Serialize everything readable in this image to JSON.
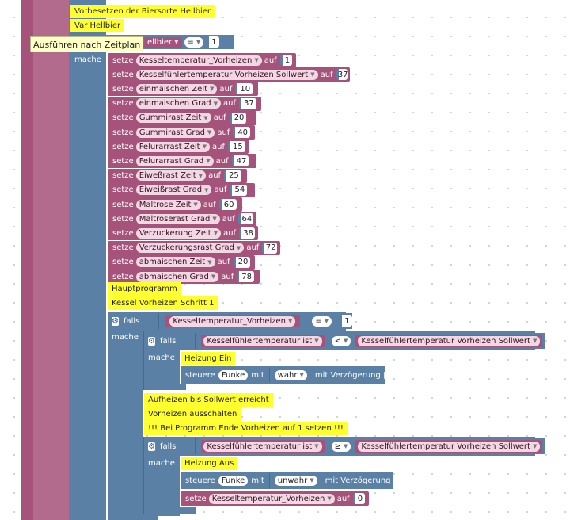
{
  "labels": {
    "setze": "setze",
    "auf": "auf",
    "mache": "mache",
    "falls": "falls",
    "steuere": "steuere",
    "mit": "mit",
    "mit_verz": "mit Verzögerung"
  },
  "tooltip": "Ausführen nach Zeitplan",
  "top_notes": [
    "Vorbesetzen der Biersorte Hellbier",
    "Var Hellbier"
  ],
  "top_if": {
    "var": "ellbier",
    "op": "=",
    "value": "1"
  },
  "sets": [
    {
      "var": "Kesseltemperatur_Vorheizen",
      "value": "1"
    },
    {
      "var": "Kesselfühlertemperatur Vorheizen Sollwert",
      "value": "37"
    },
    {
      "var": "einmaischen Zeit",
      "value": "10"
    },
    {
      "var": "einmaischen Grad",
      "value": "37"
    },
    {
      "var": "Gummirast Zeit",
      "value": "20"
    },
    {
      "var": "Gummirast Grad",
      "value": "40"
    },
    {
      "var": "Felurarrast Zeit",
      "value": "15"
    },
    {
      "var": "Felurarrast Grad",
      "value": "47"
    },
    {
      "var": "Eiweßrast Zeit",
      "value": "25"
    },
    {
      "var": "Eiweißrast Grad",
      "value": "54"
    },
    {
      "var": "Maltrose Zeit",
      "value": "60"
    },
    {
      "var": "Maltroserast Grad",
      "value": "64"
    },
    {
      "var": "Verzuckerung Zeit",
      "value": "38"
    },
    {
      "var": "Verzuckerungsrast Grad",
      "value": "72"
    },
    {
      "var": "abmaischen Zeit",
      "value": "20"
    },
    {
      "var": "abmaischen Grad",
      "value": "78"
    }
  ],
  "mid_notes": [
    "Hauptprogramm",
    "Kessel Vorheizen Schritt 1"
  ],
  "if1": {
    "var": "Kesseltemperatur_Vorheizen",
    "op": "=",
    "value": "1"
  },
  "if2": {
    "left": "Kesselfühlertemperatur ist",
    "op": "<",
    "right": "Kesselfühlertemperatur Vorheizen Sollwert"
  },
  "heat_on_note": "Heizung Ein",
  "ctrl1": {
    "device": "Funke",
    "value": "wahr"
  },
  "notes3": [
    "Aufheizen bis Sollwert erreicht",
    "Vorheizen ausschalten",
    "!!! Bei Programm Ende Vorheizen auf 1 setzen  !!!"
  ],
  "if3": {
    "left": "Kesselfühlertemperatur ist",
    "op": "≥",
    "right": "Kesselfühlertemperatur Vorheizen Sollwert"
  },
  "heat_off_note": "Heizung Aus",
  "ctrl2": {
    "device": "Funke",
    "value": "unwahr"
  },
  "final_set": {
    "var": "Kesseltemperatur_Vorheizen",
    "value": "0"
  }
}
